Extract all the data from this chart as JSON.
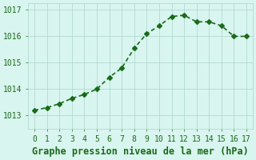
{
  "x": [
    0,
    1,
    2,
    3,
    4,
    5,
    6,
    7,
    8,
    9,
    10,
    11,
    12,
    13,
    14,
    15,
    16,
    17
  ],
  "y": [
    1013.2,
    1013.3,
    1013.45,
    1013.65,
    1013.8,
    1014.0,
    1014.45,
    1014.8,
    1015.55,
    1016.1,
    1016.4,
    1016.75,
    1016.8,
    1016.55,
    1016.55,
    1016.4,
    1016.0,
    1016.0
  ],
  "line_color": "#1a6b1a",
  "marker": "D",
  "marker_size": 3,
  "bg_color": "#d9f5ef",
  "grid_color": "#aad4cc",
  "xlabel": "Graphe pression niveau de la mer (hPa)",
  "xlabel_fontsize": 8.5,
  "xlabel_color": "#1a6b1a",
  "tick_color": "#1a6b1a",
  "ylim": [
    1012.5,
    1017.25
  ],
  "xlim": [
    -0.5,
    17.5
  ],
  "yticks": [
    1013,
    1014,
    1015,
    1016,
    1017
  ],
  "xticks": [
    0,
    1,
    2,
    3,
    4,
    5,
    6,
    7,
    8,
    9,
    10,
    11,
    12,
    13,
    14,
    15,
    16,
    17
  ],
  "tick_fontsize": 7,
  "line_width": 1.2
}
